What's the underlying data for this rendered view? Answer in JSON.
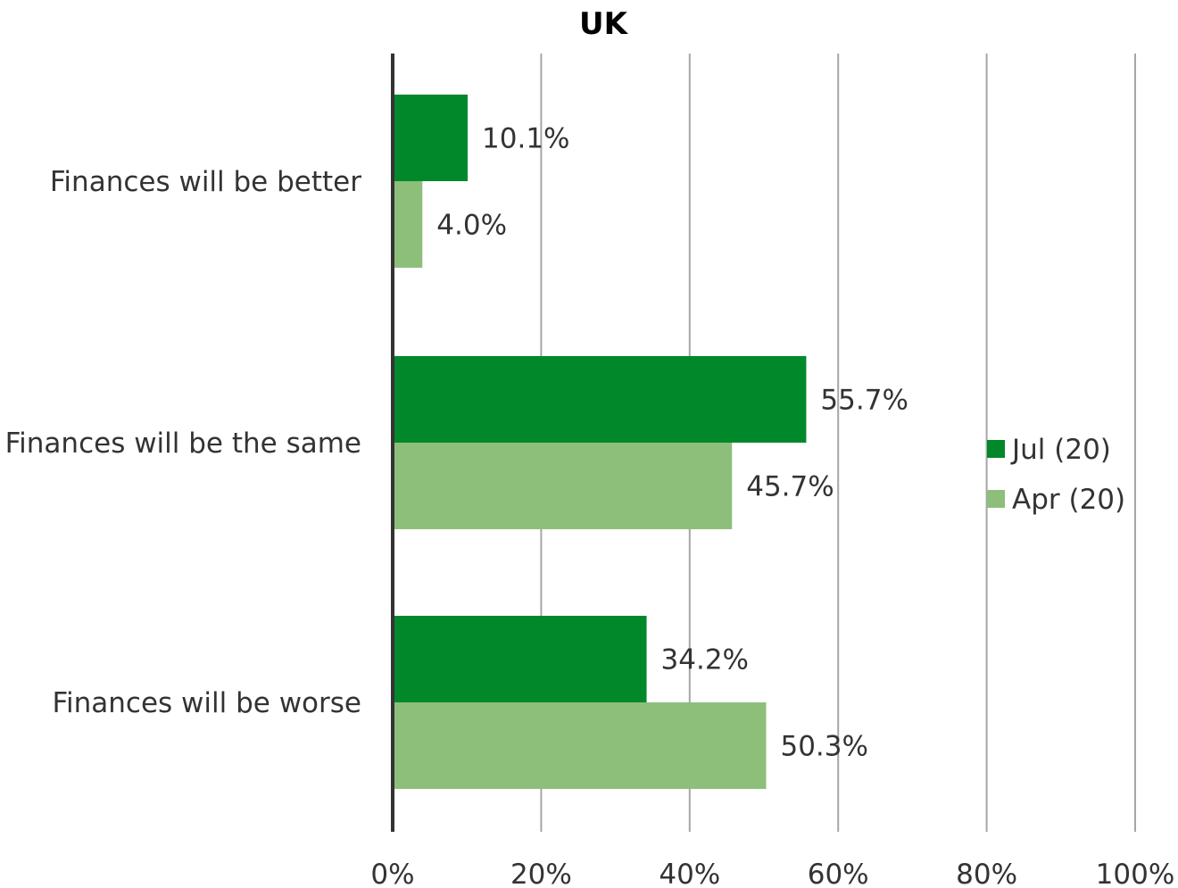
{
  "chart_data": {
    "type": "bar",
    "orientation": "horizontal",
    "title": "UK",
    "categories": [
      "Finances will be better",
      "Finances will be the same",
      "Finances will be worse"
    ],
    "series": [
      {
        "name": "Jul (20)",
        "values": [
          10.1,
          55.7,
          34.2
        ],
        "labels": [
          "10.1%",
          "55.7%",
          "34.2%"
        ],
        "color": "#00882B"
      },
      {
        "name": "Apr (20)",
        "values": [
          4.0,
          45.7,
          50.3
        ],
        "labels": [
          "4.0%",
          "45.7%",
          "50.3%"
        ],
        "color": "#8DBF7A"
      }
    ],
    "xlim": [
      0,
      100
    ],
    "x_ticks": [
      0,
      20,
      40,
      60,
      80,
      100
    ],
    "x_tick_labels": [
      "0%",
      "20%",
      "40%",
      "60%",
      "80%",
      "100%"
    ],
    "grid": true,
    "legend_position": "right"
  }
}
